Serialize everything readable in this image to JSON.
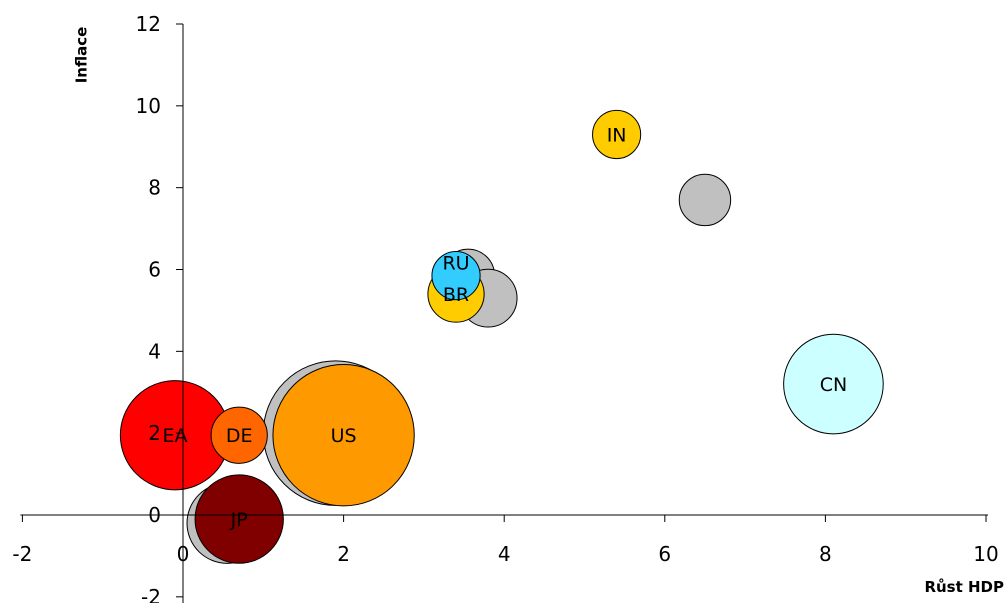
{
  "chart_data": {
    "type": "scatter",
    "title": "",
    "xlabel": "Růst HDP",
    "ylabel": "Inflace",
    "xlim": [
      -2,
      10
    ],
    "ylim": [
      -2,
      12
    ],
    "xticks": [
      -2,
      0,
      2,
      4,
      6,
      8,
      10
    ],
    "yticks": [
      -2,
      0,
      2,
      4,
      6,
      8,
      10,
      12
    ],
    "grid": false,
    "legend": "none",
    "ghost_series": {
      "color": "#c0c0c0",
      "points": [
        {
          "x": 3.55,
          "y": 5.85,
          "size": 0.33
        },
        {
          "x": 3.8,
          "y": 5.3,
          "size": 0.36
        },
        {
          "x": 6.5,
          "y": 7.7,
          "size": 0.32
        },
        {
          "x": 1.9,
          "y": 2.0,
          "size": 0.9
        },
        {
          "x": 0.55,
          "y": -0.2,
          "size": 0.5
        }
      ]
    },
    "series": [
      {
        "label": "RU",
        "x": 3.4,
        "y": 5.85,
        "size": 0.3,
        "color": "#33ccff"
      },
      {
        "label": "BR",
        "x": 3.4,
        "y": 5.4,
        "size": 0.35,
        "color": "#ffcc00"
      },
      {
        "label": "IN",
        "x": 5.4,
        "y": 9.3,
        "size": 0.3,
        "color": "#ffcc00"
      },
      {
        "label": "CN",
        "x": 8.1,
        "y": 3.2,
        "size": 0.62,
        "color": "#ccffff"
      },
      {
        "label": "EA",
        "x": -0.1,
        "y": 1.95,
        "size": 0.68,
        "color": "#ff0000"
      },
      {
        "label": "DE",
        "x": 0.7,
        "y": 1.95,
        "size": 0.35,
        "color": "#ff6600"
      },
      {
        "label": "US",
        "x": 2.0,
        "y": 1.95,
        "size": 0.88,
        "color": "#ff9900"
      },
      {
        "label": "JP",
        "x": 0.7,
        "y": -0.1,
        "size": 0.55,
        "color": "#800000"
      }
    ]
  }
}
